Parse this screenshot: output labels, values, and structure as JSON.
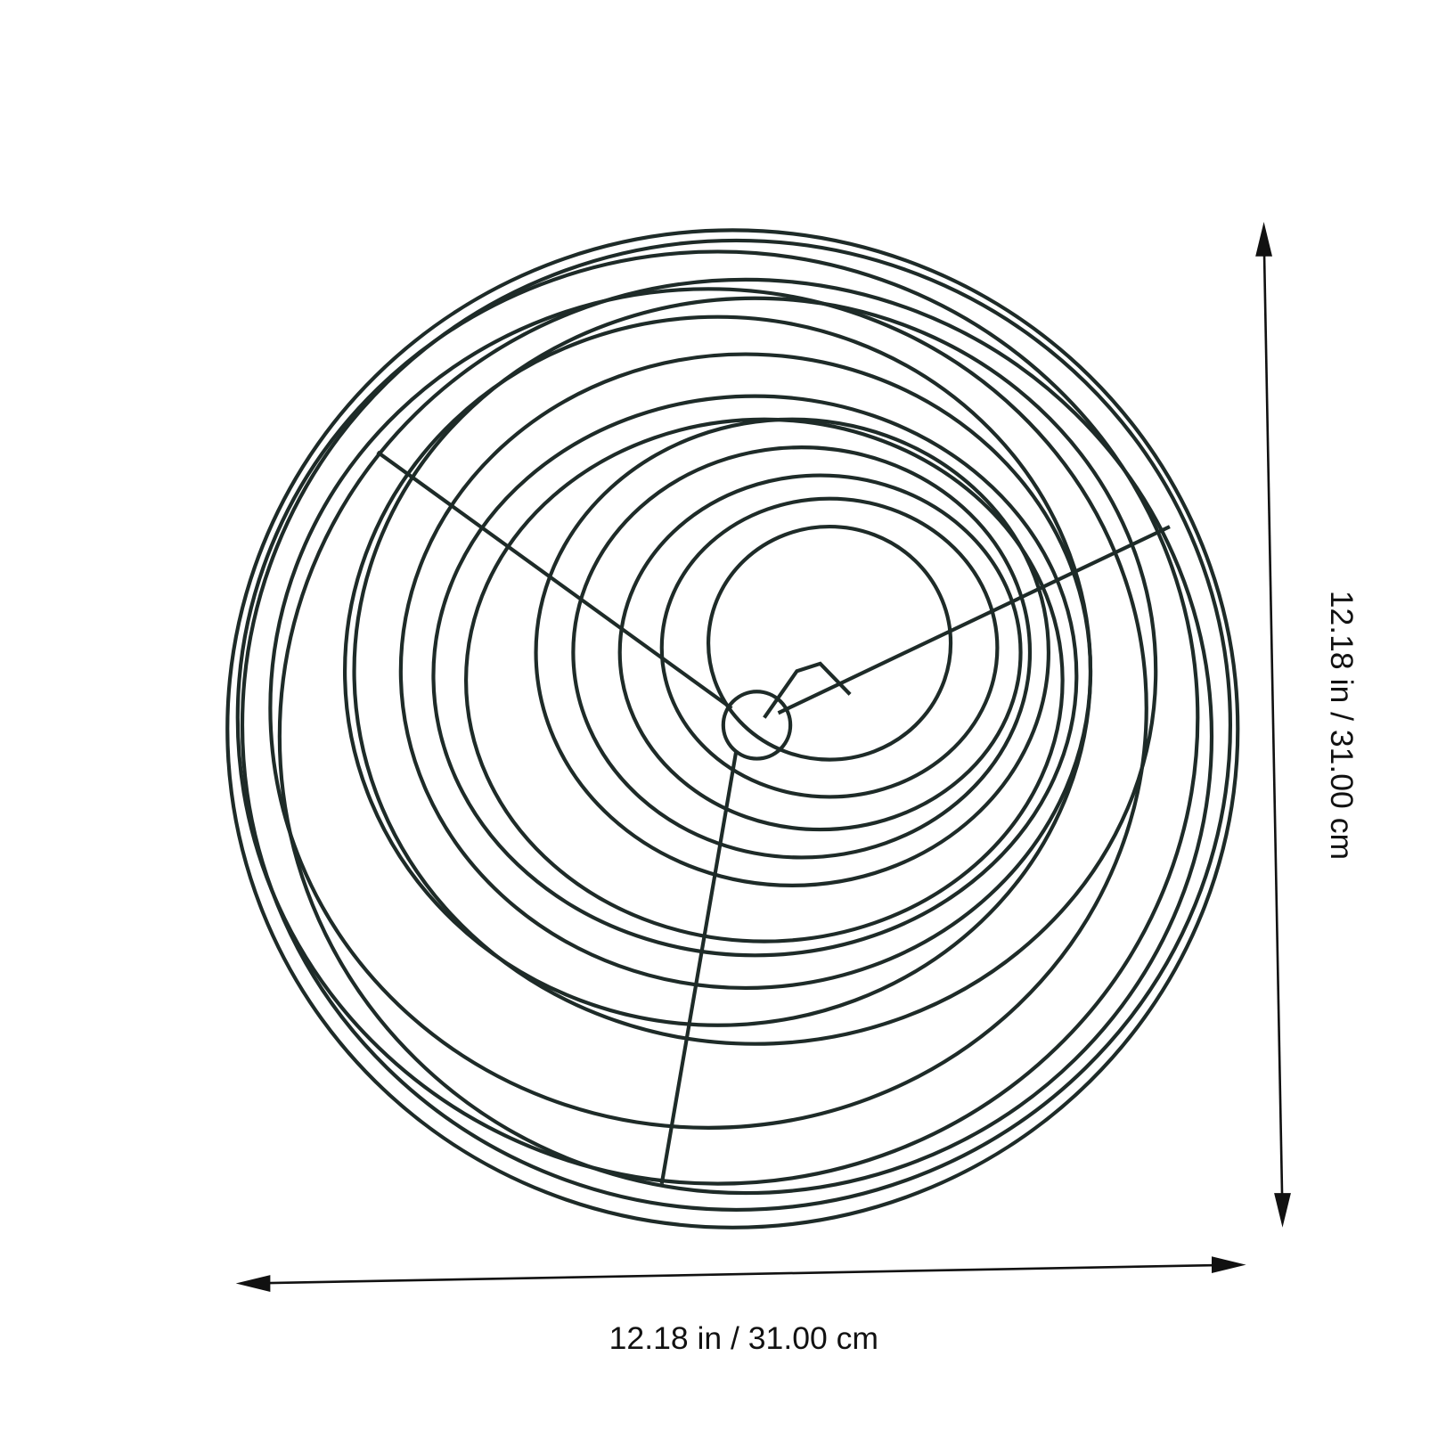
{
  "dimensions": {
    "width": "12.18 in / 31.00 cm",
    "height": "12.18 in / 31.00 cm"
  }
}
